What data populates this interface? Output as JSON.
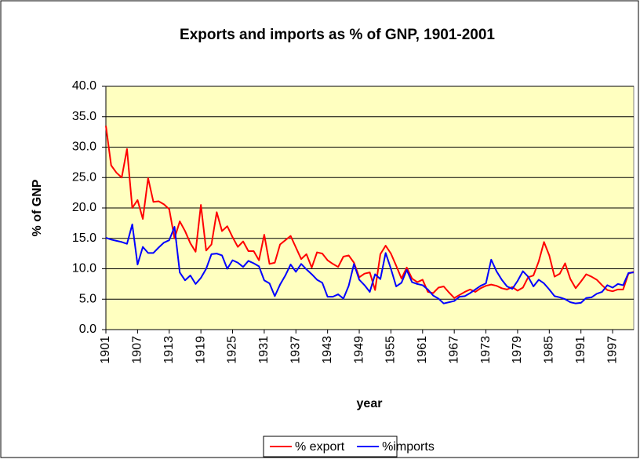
{
  "chart_data": {
    "type": "line",
    "title": "Exports and imports as % of GNP, 1901-2001",
    "xlabel": "year",
    "ylabel": "% of GNP",
    "x": [
      1901,
      1902,
      1903,
      1904,
      1905,
      1906,
      1907,
      1908,
      1909,
      1910,
      1911,
      1912,
      1913,
      1914,
      1915,
      1916,
      1917,
      1918,
      1919,
      1920,
      1921,
      1922,
      1923,
      1924,
      1925,
      1926,
      1927,
      1928,
      1929,
      1930,
      1931,
      1932,
      1933,
      1934,
      1935,
      1936,
      1937,
      1938,
      1939,
      1940,
      1941,
      1942,
      1943,
      1944,
      1945,
      1946,
      1947,
      1948,
      1949,
      1950,
      1951,
      1952,
      1953,
      1954,
      1955,
      1956,
      1957,
      1958,
      1959,
      1960,
      1961,
      1962,
      1963,
      1964,
      1965,
      1966,
      1967,
      1968,
      1969,
      1970,
      1971,
      1972,
      1973,
      1974,
      1975,
      1976,
      1977,
      1978,
      1979,
      1980,
      1981,
      1982,
      1983,
      1984,
      1985,
      1986,
      1987,
      1988,
      1989,
      1990,
      1991,
      1992,
      1993,
      1994,
      1995,
      1996,
      1997,
      1998,
      1999,
      2000,
      2001
    ],
    "xlim": [
      1901,
      2001
    ],
    "xticks": [
      1901,
      1907,
      1913,
      1919,
      1925,
      1931,
      1937,
      1943,
      1949,
      1955,
      1961,
      1967,
      1973,
      1979,
      1985,
      1991,
      1997
    ],
    "ylim": [
      0,
      40
    ],
    "yticks": [
      {
        "value": 0,
        "label": "0.0"
      },
      {
        "value": 5,
        "label": "5.0"
      },
      {
        "value": 10,
        "label": "10.0"
      },
      {
        "value": 15,
        "label": "15.0"
      },
      {
        "value": 20,
        "label": "20.0"
      },
      {
        "value": 25,
        "label": "25.0"
      },
      {
        "value": 30,
        "label": "30.0"
      },
      {
        "value": 35,
        "label": "35.0"
      },
      {
        "value": 40,
        "label": "40.0"
      }
    ],
    "grid": true,
    "legend": "bottom",
    "series": [
      {
        "name": "% export",
        "color": "#ff0000",
        "values": [
          33.5,
          27,
          25.8,
          25,
          29.7,
          20,
          21.3,
          18.2,
          24.9,
          21,
          21.1,
          20.6,
          19.8,
          15,
          17.8,
          16.2,
          14.2,
          12.8,
          20.5,
          13,
          14,
          19.3,
          16.2,
          17,
          15.2,
          13.6,
          14.5,
          12.9,
          12.9,
          11.4,
          15.6,
          10.8,
          11,
          14,
          14.7,
          15.4,
          13.5,
          11.6,
          12.4,
          10.2,
          12.7,
          12.5,
          11.4,
          10.8,
          10.3,
          12,
          12.2,
          11,
          8.6,
          9.2,
          9.4,
          6.5,
          12.4,
          13.8,
          12.5,
          10.5,
          8.4,
          10.2,
          8.4,
          7.8,
          8.2,
          6.2,
          6,
          6.9,
          7.1,
          6.1,
          5.2,
          5.7,
          6.2,
          6.6,
          6.2,
          6.8,
          7.2,
          7.4,
          7.2,
          6.8,
          6.6,
          7,
          6.4,
          6.9,
          8.6,
          8.9,
          11.2,
          14.4,
          12.2,
          8.7,
          9.2,
          10.9,
          8.3,
          6.8,
          7.9,
          9.1,
          8.7,
          8.2,
          7.3,
          6.5,
          6.3,
          6.6,
          6.6,
          9.2,
          9.5
        ]
      },
      {
        "name": "%imports",
        "color": "#0000ff",
        "values": [
          15.1,
          14.8,
          14.6,
          14.4,
          14.1,
          17.3,
          10.7,
          13.6,
          12.6,
          12.6,
          13.5,
          14.3,
          14.7,
          16.9,
          9.4,
          8.1,
          8.9,
          7.5,
          8.5,
          10,
          12.4,
          12.5,
          12.2,
          10,
          11.4,
          11,
          10.3,
          11.3,
          10.9,
          10.4,
          8.1,
          7.6,
          5.5,
          7.4,
          8.9,
          10.7,
          9.5,
          10.8,
          9.9,
          9.1,
          8.2,
          7.7,
          5.4,
          5.4,
          5.8,
          5.1,
          7.2,
          10.8,
          8.2,
          7.3,
          6.2,
          9.1,
          8.3,
          12.6,
          10,
          7.1,
          7.7,
          9.8,
          7.8,
          7.5,
          7.3,
          6.6,
          5.6,
          5.1,
          4.3,
          4.5,
          4.7,
          5.4,
          5.5,
          6,
          6.6,
          7.2,
          7.6,
          11.5,
          9.6,
          8.2,
          7.1,
          6.7,
          8,
          9.6,
          8.7,
          7.1,
          8.2,
          7.6,
          6.6,
          5.5,
          5.3,
          5,
          4.5,
          4.3,
          4.4,
          5.2,
          5.3,
          5.9,
          6.2,
          7.3,
          6.9,
          7.5,
          7.3,
          9.3,
          9.4
        ]
      }
    ]
  }
}
